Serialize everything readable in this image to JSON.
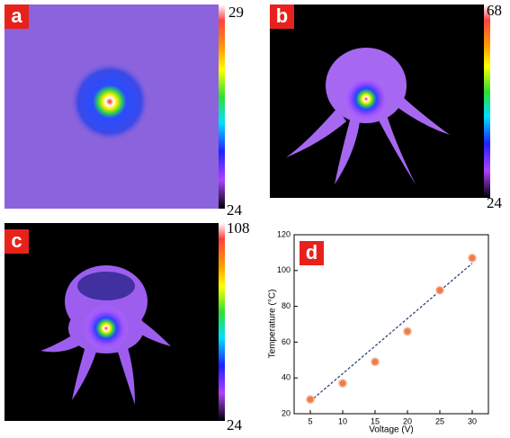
{
  "panels": [
    {
      "label": "a",
      "colorbar_max": 29,
      "colorbar_min": 24
    },
    {
      "label": "b",
      "colorbar_max": 68,
      "colorbar_min": 24
    },
    {
      "label": "c",
      "colorbar_max": 108,
      "colorbar_min": 24
    }
  ],
  "chart_data": {
    "type": "scatter",
    "label": "d",
    "x_label": "Voltage (V)",
    "y_label": "Temperature (°C)",
    "x": [
      5,
      10,
      15,
      20,
      25,
      30
    ],
    "values": [
      28,
      37,
      49,
      66,
      89,
      107
    ],
    "color": "#f07b4a",
    "trendline": {
      "x": [
        5,
        30
      ],
      "values": [
        27,
        104
      ],
      "color": "#1f3a6e"
    },
    "xlim": [
      2.5,
      32.5
    ],
    "xticks": [
      5,
      10,
      15,
      20,
      25,
      30
    ],
    "ylim": [
      20,
      120
    ],
    "yticks": [
      20,
      40,
      60,
      80,
      100,
      120
    ]
  }
}
